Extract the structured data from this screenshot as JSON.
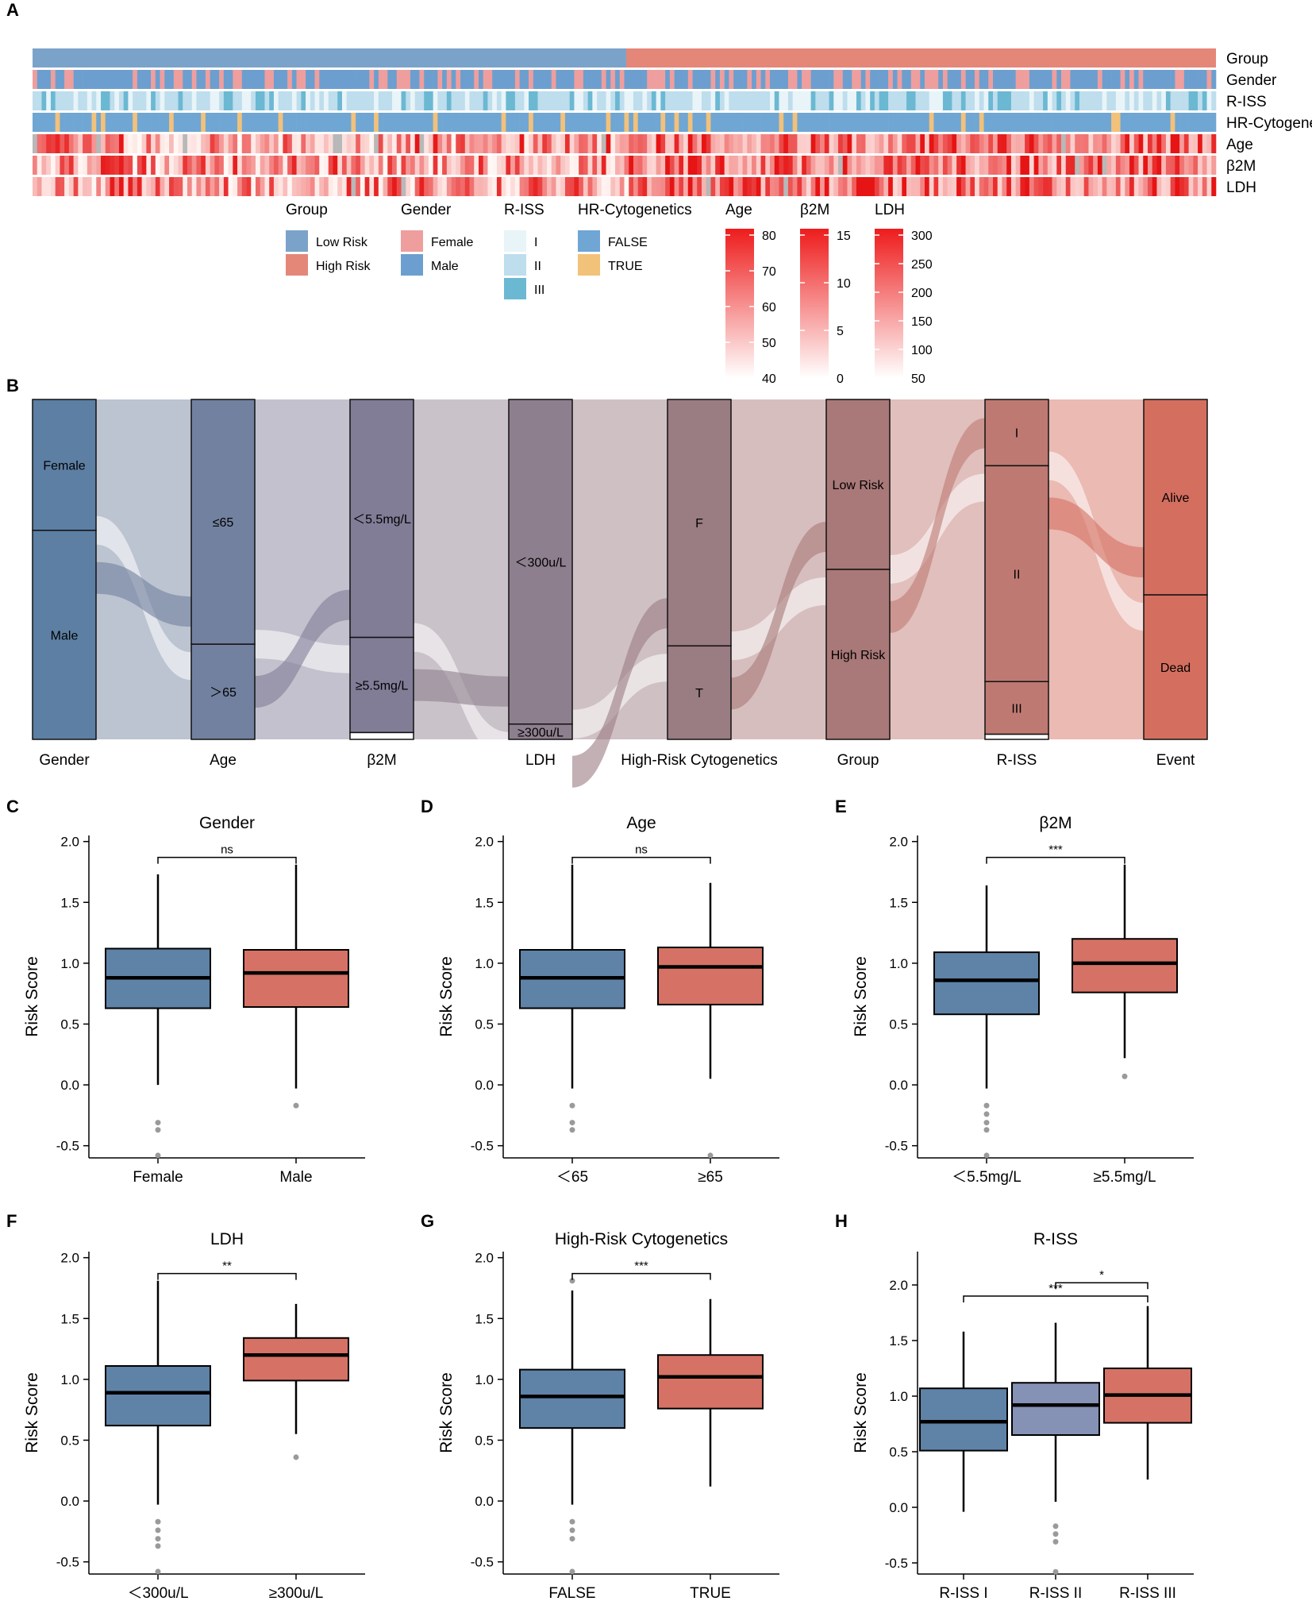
{
  "panel_letters": [
    "A",
    "B",
    "C",
    "D",
    "E",
    "F",
    "G",
    "H"
  ],
  "colors": {
    "low_risk": "#7ba3c9",
    "high_risk": "#e48779",
    "female": "#ef9e9e",
    "male": "#6c9fcf",
    "riss": [
      "#e8f4f8",
      "#bedded",
      "#6bb8d3"
    ],
    "hr_false": "#6fa6d4",
    "hr_true": "#f2c17a",
    "box_blue": "#5f82a7",
    "box_red": "#d57265",
    "box_lavender": "#8591b5"
  },
  "heatmap": {
    "rows": [
      "Group",
      "Gender",
      "R-ISS",
      "HR-Cytogenetics",
      "Age",
      "β2M",
      "LDH"
    ],
    "legend": {
      "group": {
        "title": "Group",
        "items": [
          "Low Risk",
          "High Risk"
        ]
      },
      "gender": {
        "title": "Gender",
        "items": [
          "Female",
          "Male"
        ]
      },
      "riss": {
        "title": "R-ISS",
        "items": [
          "I",
          "II",
          "III"
        ]
      },
      "hr": {
        "title": "HR-Cytogenetics",
        "items": [
          "FALSE",
          "TRUE"
        ]
      },
      "age": {
        "title": "Age",
        "ticks": [
          "80",
          "70",
          "60",
          "50",
          "40"
        ]
      },
      "b2m": {
        "title": "β2M",
        "ticks": [
          "15",
          "10",
          "5",
          "0"
        ]
      },
      "ldh": {
        "title": "LDH",
        "ticks": [
          "300",
          "250",
          "200",
          "150",
          "100",
          "50"
        ]
      }
    }
  },
  "sankey": {
    "axes": [
      "Gender",
      "Age",
      "β2M",
      "LDH",
      "High-Risk Cytogenetics",
      "Group",
      "R-ISS",
      "Event"
    ],
    "stratum_colors": [
      "#5c7fa3",
      "#72819f",
      "#817d97",
      "#8e7f8e",
      "#9a7c83",
      "#a97878",
      "#be7a72",
      "#d46f60"
    ],
    "columns": [
      {
        "axis": "Gender",
        "strata": [
          {
            "label": "Female",
            "fraction": 0.385
          },
          {
            "label": "Male",
            "fraction": 0.615
          }
        ]
      },
      {
        "axis": "Age",
        "strata": [
          {
            "label": "≤65",
            "fraction": 0.72
          },
          {
            "label": "＞65",
            "fraction": 0.28
          }
        ]
      },
      {
        "axis": "β2M",
        "strata": [
          {
            "label": "＜5.5mg/L",
            "fraction": 0.7
          },
          {
            "label": "≥5.5mg/L",
            "fraction": 0.28
          },
          {
            "label": "",
            "fraction": 0.02
          }
        ]
      },
      {
        "axis": "LDH",
        "strata": [
          {
            "label": "＜300u/L",
            "fraction": 0.955
          },
          {
            "label": "≥300u/L",
            "fraction": 0.045
          }
        ]
      },
      {
        "axis": "High-Risk Cytogenetics",
        "strata": [
          {
            "label": "F",
            "fraction": 0.725
          },
          {
            "label": "T",
            "fraction": 0.275
          }
        ]
      },
      {
        "axis": "Group",
        "strata": [
          {
            "label": "Low Risk",
            "fraction": 0.5
          },
          {
            "label": "High Risk",
            "fraction": 0.5
          }
        ]
      },
      {
        "axis": "R-ISS",
        "strata": [
          {
            "label": "I",
            "fraction": 0.195
          },
          {
            "label": "II",
            "fraction": 0.635
          },
          {
            "label": "III",
            "fraction": 0.155
          },
          {
            "label": "",
            "fraction": 0.015
          }
        ]
      },
      {
        "axis": "Event",
        "strata": [
          {
            "label": "Alive",
            "fraction": 0.575
          },
          {
            "label": "Dead",
            "fraction": 0.425
          }
        ]
      }
    ]
  },
  "chart_data": [
    {
      "type": "box",
      "panel": "C",
      "title": "Gender",
      "ylabel": "Risk Score",
      "ylim": [
        -0.6,
        2.05
      ],
      "yticks": [
        "2.0",
        "1.5",
        "1.0",
        "0.5",
        "0.0",
        "-0.5"
      ],
      "categories": [
        "Female",
        "Male"
      ],
      "boxes": [
        {
          "q1": 0.63,
          "median": 0.88,
          "q3": 1.12,
          "whisker_low": 0.0,
          "whisker_high": 1.73,
          "outliers": [
            -0.31,
            -0.37,
            -0.58
          ],
          "color": "#5f82a7"
        },
        {
          "q1": 0.64,
          "median": 0.92,
          "q3": 1.11,
          "whisker_low": -0.03,
          "whisker_high": 1.81,
          "outliers": [
            -0.17
          ],
          "color": "#d57265"
        }
      ],
      "brackets": [
        {
          "from": 0,
          "to": 1,
          "label": "ns",
          "y": 1.87
        }
      ]
    },
    {
      "type": "box",
      "panel": "D",
      "title": "Age",
      "ylabel": "Risk Score",
      "ylim": [
        -0.6,
        2.05
      ],
      "yticks": [
        "2.0",
        "1.5",
        "1.0",
        "0.5",
        "0.0",
        "-0.5"
      ],
      "categories": [
        "＜65",
        "≥65"
      ],
      "boxes": [
        {
          "q1": 0.63,
          "median": 0.88,
          "q3": 1.11,
          "whisker_low": -0.03,
          "whisker_high": 1.81,
          "outliers": [
            -0.17,
            -0.31,
            -0.37
          ],
          "color": "#5f82a7"
        },
        {
          "q1": 0.66,
          "median": 0.97,
          "q3": 1.13,
          "whisker_low": 0.05,
          "whisker_high": 1.66,
          "outliers": [
            -0.58
          ],
          "color": "#d57265"
        }
      ],
      "brackets": [
        {
          "from": 0,
          "to": 1,
          "label": "ns",
          "y": 1.87
        }
      ]
    },
    {
      "type": "box",
      "panel": "E",
      "title": "β2M",
      "ylabel": "Risk Score",
      "ylim": [
        -0.6,
        2.05
      ],
      "yticks": [
        "2.0",
        "1.5",
        "1.0",
        "0.5",
        "0.0",
        "-0.5"
      ],
      "categories": [
        "＜5.5mg/L",
        "≥5.5mg/L"
      ],
      "boxes": [
        {
          "q1": 0.58,
          "median": 0.86,
          "q3": 1.09,
          "whisker_low": -0.03,
          "whisker_high": 1.64,
          "outliers": [
            -0.17,
            -0.24,
            -0.31,
            -0.37,
            -0.58
          ],
          "color": "#5f82a7"
        },
        {
          "q1": 0.76,
          "median": 1.0,
          "q3": 1.2,
          "whisker_low": 0.22,
          "whisker_high": 1.81,
          "outliers": [
            0.07
          ],
          "color": "#d57265"
        }
      ],
      "brackets": [
        {
          "from": 0,
          "to": 1,
          "label": "***",
          "y": 1.87
        }
      ]
    },
    {
      "type": "box",
      "panel": "F",
      "title": "LDH",
      "ylabel": "Risk Score",
      "ylim": [
        -0.6,
        2.05
      ],
      "yticks": [
        "2.0",
        "1.5",
        "1.0",
        "0.5",
        "0.0",
        "-0.5"
      ],
      "categories": [
        "＜300u/L",
        "≥300u/L"
      ],
      "boxes": [
        {
          "q1": 0.62,
          "median": 0.89,
          "q3": 1.11,
          "whisker_low": -0.03,
          "whisker_high": 1.81,
          "outliers": [
            -0.17,
            -0.24,
            -0.31,
            -0.37,
            -0.58
          ],
          "color": "#5f82a7"
        },
        {
          "q1": 0.99,
          "median": 1.2,
          "q3": 1.34,
          "whisker_low": 0.55,
          "whisker_high": 1.62,
          "outliers": [
            0.36
          ],
          "color": "#d57265"
        }
      ],
      "brackets": [
        {
          "from": 0,
          "to": 1,
          "label": "**",
          "y": 1.87
        }
      ]
    },
    {
      "type": "box",
      "panel": "G",
      "title": "High-Risk Cytogenetics",
      "ylabel": "Risk Score",
      "ylim": [
        -0.6,
        2.05
      ],
      "yticks": [
        "2.0",
        "1.5",
        "1.0",
        "0.5",
        "0.0",
        "-0.5"
      ],
      "categories": [
        "FALSE",
        "TRUE"
      ],
      "boxes": [
        {
          "q1": 0.6,
          "median": 0.86,
          "q3": 1.08,
          "whisker_low": -0.03,
          "whisker_high": 1.73,
          "outliers": [
            1.81,
            -0.17,
            -0.24,
            -0.31,
            -0.58
          ],
          "color": "#5f82a7"
        },
        {
          "q1": 0.76,
          "median": 1.02,
          "q3": 1.2,
          "whisker_low": 0.12,
          "whisker_high": 1.66,
          "outliers": [],
          "color": "#d57265"
        }
      ],
      "brackets": [
        {
          "from": 0,
          "to": 1,
          "label": "***",
          "y": 1.87
        }
      ]
    },
    {
      "type": "box",
      "panel": "H",
      "title": "R-ISS",
      "ylabel": "Risk Score",
      "ylim": [
        -0.6,
        2.3
      ],
      "yticks": [
        "2.0",
        "1.5",
        "1.0",
        "0.5",
        "0.0",
        "-0.5"
      ],
      "categories": [
        "R-ISS I",
        "R-ISS II",
        "R-ISS III"
      ],
      "boxes": [
        {
          "q1": 0.51,
          "median": 0.77,
          "q3": 1.07,
          "whisker_low": -0.04,
          "whisker_high": 1.58,
          "outliers": [],
          "color": "#5f82a7"
        },
        {
          "q1": 0.65,
          "median": 0.92,
          "q3": 1.12,
          "whisker_low": 0.05,
          "whisker_high": 1.66,
          "outliers": [
            -0.17,
            -0.24,
            -0.31,
            -0.58
          ],
          "color": "#8591b5"
        },
        {
          "q1": 0.76,
          "median": 1.01,
          "q3": 1.25,
          "whisker_low": 0.25,
          "whisker_high": 1.81,
          "outliers": [],
          "color": "#d57265"
        }
      ],
      "brackets": [
        {
          "from": 1,
          "to": 2,
          "label": "*",
          "y": 2.02
        },
        {
          "from": 0,
          "to": 2,
          "label": "***",
          "y": 1.9
        }
      ]
    }
  ]
}
